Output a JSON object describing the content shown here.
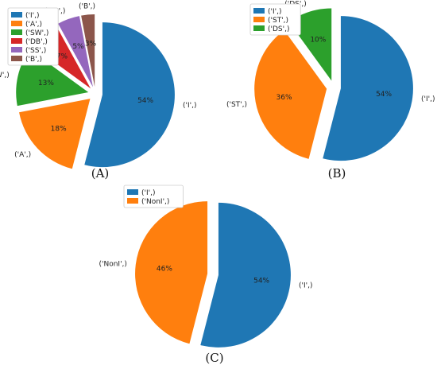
{
  "chart_data": [
    {
      "type": "pie",
      "panel_label": "(A)",
      "title": "",
      "slices": [
        {
          "label": "('I',)",
          "value": 54,
          "pct_label": "54%",
          "color": "#1f77b4"
        },
        {
          "label": "('A',)",
          "value": 18,
          "pct_label": "18%",
          "color": "#ff7f0e"
        },
        {
          "label": "('SW',)",
          "value": 13,
          "pct_label": "13%",
          "color": "#2ca02c"
        },
        {
          "label": "('DB',)",
          "value": 7,
          "pct_label": "7%",
          "color": "#d62728"
        },
        {
          "label": "('SS',)",
          "value": 5,
          "pct_label": "5%",
          "color": "#9467bd"
        },
        {
          "label": "('B',)",
          "value": 3,
          "pct_label": "3%",
          "color": "#8c564b"
        }
      ],
      "exploded": true,
      "legend_placement": "top-left",
      "legend": [
        "('I',)",
        "('A',)",
        "('SW',)",
        "('DB',)",
        "('SS',)",
        "('B',)"
      ]
    },
    {
      "type": "pie",
      "panel_label": "(B)",
      "title": "",
      "slices": [
        {
          "label": "('I',)",
          "value": 54,
          "pct_label": "54%",
          "color": "#1f77b4"
        },
        {
          "label": "('ST',)",
          "value": 36,
          "pct_label": "36%",
          "color": "#ff7f0e"
        },
        {
          "label": "('DS',)",
          "value": 10,
          "pct_label": "10%",
          "color": "#2ca02c"
        }
      ],
      "exploded": true,
      "legend_placement": "top-left",
      "legend": [
        "('I',)",
        "('ST',)",
        "('DS',)"
      ]
    },
    {
      "type": "pie",
      "panel_label": "(C)",
      "title": "",
      "slices": [
        {
          "label": "('I',)",
          "value": 54,
          "pct_label": "54%",
          "color": "#1f77b4"
        },
        {
          "label": "('NonI',)",
          "value": 46,
          "pct_label": "46%",
          "color": "#ff7f0e"
        }
      ],
      "exploded": true,
      "legend_placement": "top-left",
      "legend": [
        "('I',)",
        "('NonI',)"
      ]
    }
  ]
}
